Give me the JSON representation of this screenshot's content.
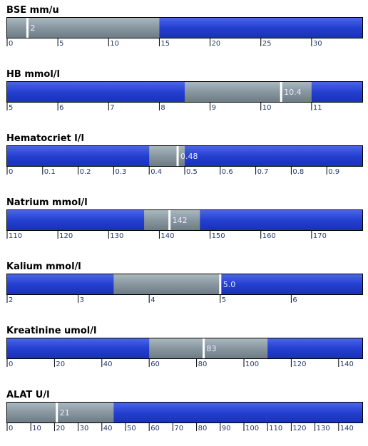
{
  "chart_data": [
    {
      "type": "bullet",
      "title": "BSE mm/u",
      "xlim": [
        0,
        35
      ],
      "xticks": [
        0,
        5,
        10,
        15,
        20,
        25,
        30
      ],
      "range": [
        0,
        15
      ],
      "value": 2
    },
    {
      "type": "bullet",
      "title": "HB mmol/l",
      "xlim": [
        5,
        12
      ],
      "xticks": [
        5,
        6,
        7,
        8,
        9,
        10,
        11
      ],
      "range": [
        8.5,
        11
      ],
      "value": 10.4
    },
    {
      "type": "bullet",
      "title": "Hematocriet l/l",
      "xlim": [
        0,
        1.0
      ],
      "xticks": [
        0,
        0.1,
        0.2,
        0.3,
        0.4,
        0.5,
        0.6,
        0.7,
        0.8,
        0.9
      ],
      "range": [
        0.4,
        0.5
      ],
      "value": 0.48
    },
    {
      "type": "bullet",
      "title": "Natrium mmol/l",
      "xlim": [
        110,
        180
      ],
      "xticks": [
        110,
        120,
        130,
        140,
        150,
        160,
        170
      ],
      "range": [
        137,
        148
      ],
      "value": 142
    },
    {
      "type": "bullet",
      "title": "Kalium mmol/l",
      "xlim": [
        2,
        7
      ],
      "xticks": [
        2,
        3,
        4,
        5,
        6
      ],
      "range": [
        3.5,
        5.0
      ],
      "value": 5,
      "value_label": "5.0"
    },
    {
      "type": "bullet",
      "title": "Kreatinine umol/l",
      "xlim": [
        0,
        150
      ],
      "xticks": [
        0,
        20,
        40,
        60,
        80,
        100,
        120,
        140
      ],
      "range": [
        60,
        110
      ],
      "value": 83
    },
    {
      "type": "bullet",
      "title": "ALAT U/l",
      "xlim": [
        0,
        150
      ],
      "xticks": [
        0,
        10,
        20,
        30,
        40,
        50,
        60,
        70,
        80,
        90,
        100,
        110,
        120,
        130,
        140
      ],
      "range": [
        0,
        45
      ],
      "value": 21
    }
  ]
}
